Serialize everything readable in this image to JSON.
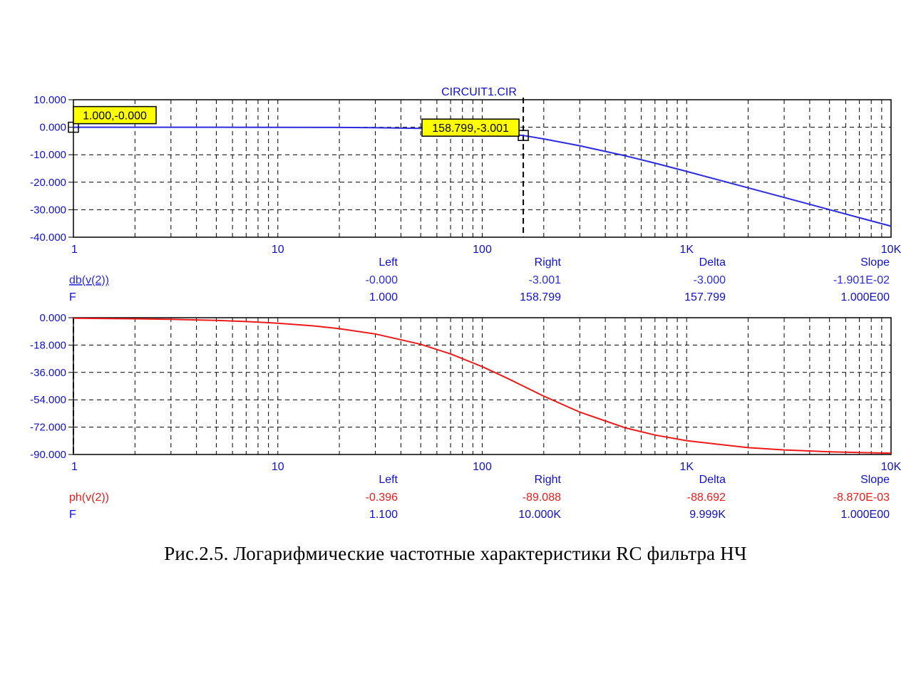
{
  "title": "CIRCUIT1.CIR",
  "caption": "Рис.2.5.   Логарифмические частотные характеристики RC  фильтра НЧ",
  "colors": {
    "title": "#1010d0",
    "magnitude": "#2b2bdf",
    "phase": "#ee1a1a",
    "grid": "#000000",
    "tooltip_bg": "#ffff00"
  },
  "chart_data": [
    {
      "type": "line",
      "xscale": "log",
      "xlim": [
        1,
        10000
      ],
      "ylim": [
        -40,
        10
      ],
      "x_ticks": [
        "1",
        "10",
        "100",
        "1K",
        "10K"
      ],
      "y_ticks": [
        "10.000",
        "0.000",
        "-10.000",
        "-20.000",
        "-30.000",
        "-40.000"
      ],
      "series": [
        {
          "name": "db(v(2))",
          "x": [
            1,
            2,
            5,
            10,
            20,
            30,
            50,
            70,
            100,
            130,
            158.8,
            200,
            300,
            500,
            700,
            1000,
            2000,
            3000,
            5000,
            7000,
            10000
          ],
          "y": [
            0,
            0,
            -0.004,
            -0.017,
            -0.069,
            -0.155,
            -0.424,
            -0.811,
            -1.53,
            -2.36,
            -3.001,
            -4.26,
            -6.73,
            -10.37,
            -13.05,
            -16.06,
            -22.04,
            -25.55,
            -29.98,
            -32.9,
            -35.98
          ]
        }
      ],
      "markers": [
        {
          "label": "1.000,-0.000"
        },
        {
          "label": "158.799,-3.001"
        }
      ],
      "table": {
        "headers": [
          "Left",
          "Right",
          "Delta",
          "Slope"
        ],
        "rows": [
          {
            "label": "db(v(2))",
            "values": [
              "-0.000",
              "-3.001",
              "-3.000",
              "-1.901E-02"
            ]
          },
          {
            "label": "F",
            "values": [
              "1.000",
              "158.799",
              "157.799",
              "1.000E00"
            ]
          }
        ]
      }
    },
    {
      "type": "line",
      "xscale": "log",
      "xlim": [
        1,
        10000
      ],
      "ylim": [
        -90,
        0
      ],
      "x_ticks": [
        "1",
        "10",
        "100",
        "1K",
        "10K"
      ],
      "y_ticks": [
        "0.000",
        "-18.000",
        "-36.000",
        "-54.000",
        "-72.000",
        "-90.000"
      ],
      "series": [
        {
          "name": "ph(v(2))",
          "x": [
            1,
            2,
            3,
            5,
            7,
            10,
            15,
            20,
            30,
            50,
            70,
            100,
            130,
            158.8,
            200,
            300,
            500,
            700,
            1000,
            2000,
            3000,
            5000,
            7000,
            10000
          ],
          "y": [
            -0.36,
            -0.72,
            -1.08,
            -1.8,
            -2.52,
            -3.6,
            -5.4,
            -7.2,
            -10.7,
            -17.5,
            -23.8,
            -32.2,
            -39.3,
            -45,
            -51.6,
            -62.1,
            -72.4,
            -77.2,
            -80.9,
            -85.5,
            -87.0,
            -88.2,
            -88.7,
            -89.1
          ]
        }
      ],
      "table": {
        "headers": [
          "Left",
          "Right",
          "Delta",
          "Slope"
        ],
        "rows": [
          {
            "label": "ph(v(2))",
            "values": [
              "-0.396",
              "-89.088",
              "-88.692",
              "-8.870E-03"
            ]
          },
          {
            "label": "F",
            "values": [
              "1.100",
              "10.000K",
              "9.999K",
              "1.000E00"
            ]
          }
        ]
      }
    }
  ]
}
